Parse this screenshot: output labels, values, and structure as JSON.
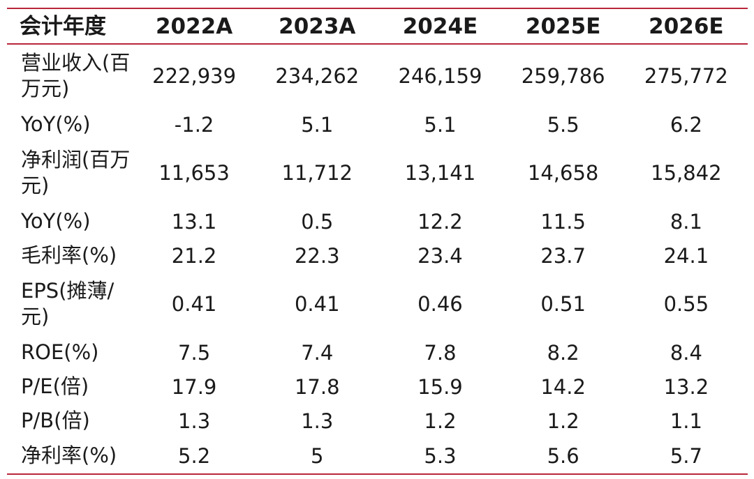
{
  "table": {
    "columns": [
      "会计年度",
      "2022A",
      "2023A",
      "2024E",
      "2025E",
      "2026E"
    ],
    "rows": [
      {
        "label": "营业收入(百万元)",
        "values": [
          "222,939",
          "234,262",
          "246,159",
          "259,786",
          "275,772"
        ]
      },
      {
        "label": "YoY(%)",
        "values": [
          "-1.2",
          "5.1",
          "5.1",
          "5.5",
          "6.2"
        ]
      },
      {
        "label": "净利润(百万元)",
        "values": [
          "11,653",
          "11,712",
          "13,141",
          "14,658",
          "15,842"
        ]
      },
      {
        "label": "YoY(%)",
        "values": [
          "13.1",
          "0.5",
          "12.2",
          "11.5",
          "8.1"
        ]
      },
      {
        "label": "毛利率(%)",
        "values": [
          "21.2",
          "22.3",
          "23.4",
          "23.7",
          "24.1"
        ]
      },
      {
        "label": "EPS(摊薄/元)",
        "values": [
          "0.41",
          "0.41",
          "0.46",
          "0.51",
          "0.55"
        ]
      },
      {
        "label": "ROE(%)",
        "values": [
          "7.5",
          "7.4",
          "7.8",
          "8.2",
          "8.4"
        ]
      },
      {
        "label": "P/E(倍)",
        "values": [
          "17.9",
          "17.8",
          "15.9",
          "14.2",
          "13.2"
        ]
      },
      {
        "label": "P/B(倍)",
        "values": [
          "1.3",
          "1.3",
          "1.2",
          "1.2",
          "1.1"
        ]
      },
      {
        "label": "净利率(%)",
        "values": [
          "5.2",
          "5",
          "5.3",
          "5.6",
          "5.7"
        ]
      }
    ]
  },
  "colors": {
    "rule": "#b8263a",
    "text": "#1a1a1a",
    "background": "#ffffff"
  }
}
